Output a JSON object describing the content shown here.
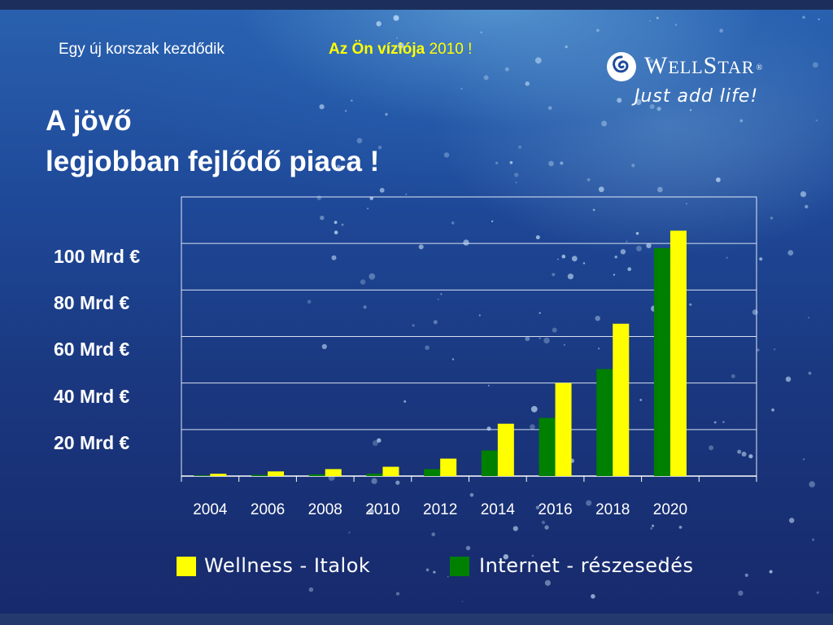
{
  "slide": {
    "tagline": "Egy új korszak kezdődik",
    "vision_label": "Az Ön víziója",
    "vision_year": "2010 !",
    "headline_line1": "A jövő",
    "headline_line2": "legjobban fejlődő piaca !"
  },
  "logo": {
    "brand_w": "W",
    "brand_ell": "ELL",
    "brand_s": "S",
    "brand_tar": "TAR",
    "registered": "®",
    "slogan": "Just add life!",
    "icon": "swirl-icon"
  },
  "colors": {
    "wellness": "#ffff00",
    "internet": "#008000",
    "text_accent": "#ffff00"
  },
  "chart_data": {
    "type": "bar",
    "categories": [
      "2004",
      "2006",
      "2008",
      "2010",
      "2012",
      "2014",
      "2016",
      "2018",
      "2020"
    ],
    "series": [
      {
        "name": "Internet - részesedés",
        "values": [
          0.3,
          0.5,
          0.7,
          1.0,
          3,
          11,
          25,
          46,
          98
        ]
      },
      {
        "name": "Wellness - Italok",
        "values": [
          1,
          2,
          3,
          4,
          7.5,
          22.5,
          40,
          65.5,
          105.5
        ]
      }
    ],
    "y_tick_labels": [
      "100 Mrd €",
      "80 Mrd €",
      "60 Mrd €",
      "40 Mrd €",
      "20 Mrd €"
    ],
    "ylim": [
      0,
      120
    ],
    "grid": true,
    "legend_position": "bottom"
  }
}
